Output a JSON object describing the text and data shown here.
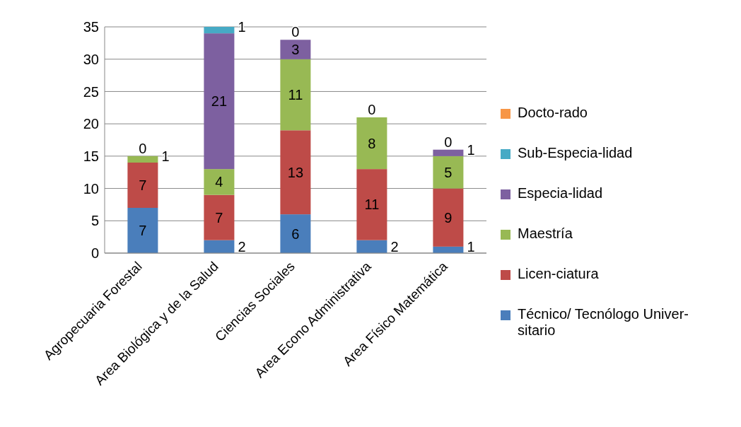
{
  "chart_data": {
    "type": "bar",
    "stacked": true,
    "categories": [
      "Agropecuaria Forestal",
      "Area Biológica y de la Salud",
      "Ciencias Sociales",
      "Area  Econo Administrativa",
      "Area Físico Matemática"
    ],
    "series": [
      {
        "name": "Técnico/ Tecnólogo Univer-sitario",
        "color": "#4a7ebb",
        "values": [
          7,
          2,
          6,
          2,
          1
        ],
        "value_labels": [
          "7",
          "2",
          "6",
          "2",
          "1"
        ]
      },
      {
        "name": "Licen-ciatura",
        "color": "#be4b48",
        "values": [
          7,
          7,
          13,
          11,
          9
        ],
        "value_labels": [
          "7",
          "7",
          "13",
          "11",
          "9"
        ]
      },
      {
        "name": "Maestría",
        "color": "#98b954",
        "values": [
          1,
          4,
          11,
          8,
          5
        ],
        "value_labels": [
          "1",
          "4",
          "11",
          "8",
          "5"
        ]
      },
      {
        "name": "Especia-lidad",
        "color": "#7d60a0",
        "values": [
          0,
          21,
          3,
          0,
          1
        ],
        "value_labels": [
          null,
          "21",
          "3",
          null,
          "1"
        ]
      },
      {
        "name": "Sub-Especia-lidad",
        "color": "#46aac5",
        "values": [
          0,
          1,
          0,
          0,
          0
        ],
        "value_labels": [
          null,
          "1",
          null,
          null,
          null
        ]
      },
      {
        "name": "Docto-rado",
        "color": "#f79646",
        "values": [
          0,
          0,
          0,
          0,
          0
        ],
        "value_labels": [
          "0",
          null,
          "0",
          "0",
          "0"
        ]
      }
    ],
    "ylim": [
      0,
      35
    ],
    "yticks": [
      0,
      5,
      10,
      15,
      20,
      25,
      30,
      35
    ],
    "grid": "y",
    "legend": "right"
  }
}
